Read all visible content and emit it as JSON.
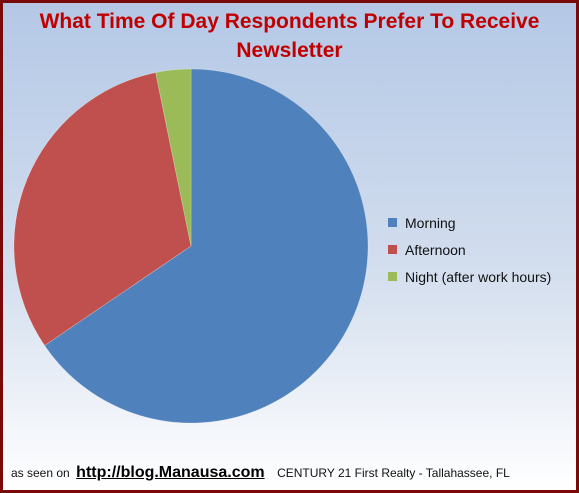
{
  "chart_data": {
    "type": "pie",
    "title": "What Time Of Day Respondents Prefer To Receive Newsletter",
    "title_lines": [
      "What Time Of Day Respondents Prefer To Receive",
      "Newsletter"
    ],
    "categories": [
      "Morning",
      "Afternoon",
      "Night (after work hours)"
    ],
    "values": [
      65.5,
      31.3,
      3.2
    ],
    "colors": [
      "#4f81bd",
      "#c0504d",
      "#9bbb59"
    ],
    "legend_position": "right"
  },
  "footer": {
    "prefix": "as seen on",
    "link": "http://blog.Manausa.com",
    "company": "CENTURY 21  First Realty - Tallahassee, FL"
  }
}
